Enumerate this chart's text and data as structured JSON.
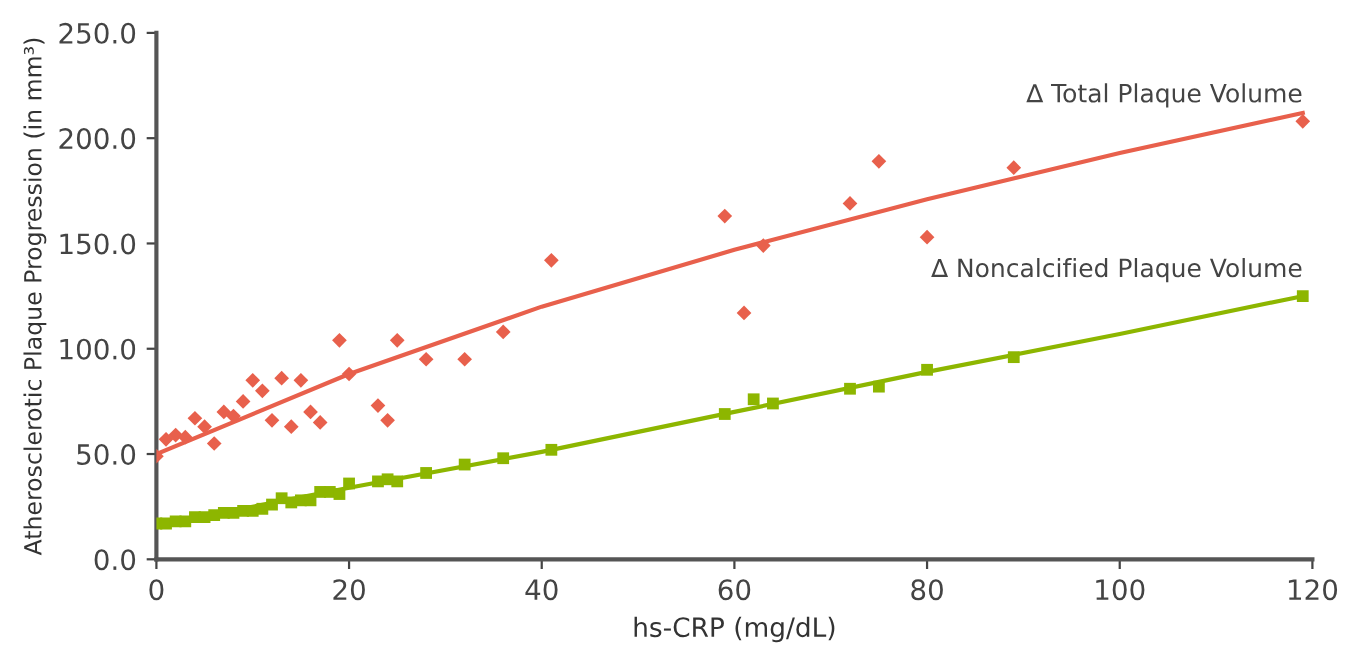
{
  "chart_data": {
    "type": "scatter",
    "xlabel": "hs-CRP (mg/dL)",
    "ylabel": "Atherosclerotic Plaque Progression (in mm³)",
    "xlim": [
      0,
      120
    ],
    "ylim": [
      0,
      250
    ],
    "xticks": [
      0,
      20,
      40,
      60,
      80,
      100,
      120
    ],
    "yticks": [
      {
        "value": 0,
        "label": "0.0"
      },
      {
        "value": 50,
        "label": "50.0"
      },
      {
        "value": 100,
        "label": "100.0"
      },
      {
        "value": 150,
        "label": "150.0"
      },
      {
        "value": 200,
        "label": "200.0"
      },
      {
        "value": 250,
        "label": "250.0"
      }
    ],
    "grid": false,
    "legend": false,
    "series": [
      {
        "name": "∆ Total Plaque Volume",
        "color": "#e8604c",
        "marker": "diamond",
        "x": [
          0,
          1,
          2,
          3,
          4,
          5,
          6,
          7,
          8,
          9,
          10,
          11,
          12,
          13,
          14,
          15,
          16,
          17,
          19,
          20,
          23,
          24,
          25,
          28,
          32,
          36,
          41,
          59,
          61,
          63,
          72,
          75,
          80,
          89,
          119
        ],
        "values": [
          49,
          57,
          59,
          58,
          67,
          63,
          55,
          70,
          68,
          75,
          85,
          80,
          66,
          86,
          63,
          85,
          70,
          65,
          104,
          88,
          73,
          66,
          104,
          95,
          95,
          108,
          142,
          163,
          117,
          149,
          169,
          189,
          153,
          186,
          208
        ]
      },
      {
        "type": "line",
        "color": "#e8604c",
        "marker": "none",
        "x": [
          0,
          20,
          40,
          60,
          80,
          100,
          119
        ],
        "values": [
          50,
          88,
          120,
          147,
          171,
          193,
          212
        ]
      },
      {
        "name": "∆ Noncalcified Plaque Volume",
        "color": "#8db600",
        "marker": "square",
        "x": [
          0,
          1,
          2,
          3,
          4,
          5,
          6,
          7,
          8,
          9,
          10,
          11,
          12,
          13,
          14,
          15,
          16,
          17,
          18,
          19,
          20,
          23,
          24,
          25,
          28,
          32,
          36,
          41,
          59,
          62,
          64,
          72,
          75,
          80,
          89,
          119
        ],
        "values": [
          17,
          17,
          18,
          18,
          20,
          20,
          21,
          22,
          22,
          23,
          23,
          24,
          26,
          29,
          27,
          28,
          28,
          32,
          32,
          31,
          36,
          37,
          38,
          37,
          41,
          45,
          48,
          52,
          69,
          76,
          74,
          81,
          82,
          90,
          96,
          125
        ]
      },
      {
        "type": "line",
        "color": "#8db600",
        "marker": "none",
        "x": [
          0,
          20,
          40,
          60,
          80,
          100,
          119
        ],
        "values": [
          16,
          34,
          51,
          70,
          89,
          107,
          125
        ]
      }
    ]
  }
}
